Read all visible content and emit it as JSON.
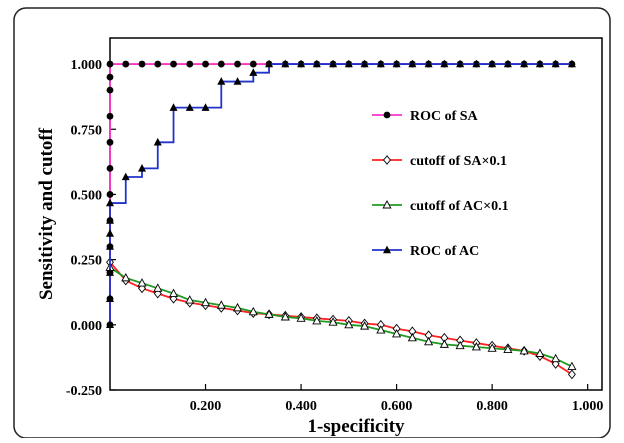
{
  "chart_data": {
    "type": "line",
    "xlabel": "1-specificity",
    "ylabel": "Sensitivity and cutoff",
    "xlim": [
      0.0,
      1.03
    ],
    "ylim": [
      -0.25,
      1.1
    ],
    "x_ticks": [
      "0.200",
      "0.400",
      "0.600",
      "0.800",
      "1.000"
    ],
    "x_tick_values": [
      0.2,
      0.4,
      0.6,
      0.8,
      1.0
    ],
    "y_ticks": [
      "1.000",
      "0.750",
      "0.500",
      "0.250",
      "0.000",
      "-0.250"
    ],
    "y_tick_values": [
      1.0,
      0.75,
      0.5,
      0.25,
      0.0,
      -0.25
    ],
    "legend_position": "right-middle",
    "series": [
      {
        "name": "ROC of SA",
        "color": "#ff33cc",
        "marker": "filled-circle",
        "marker_color": "#000000",
        "x": [
          0.0,
          0.0,
          0.0,
          0.0,
          0.0,
          0.0,
          0.0,
          0.0,
          0.0,
          0.0,
          0.0,
          0.0,
          0.033,
          0.067,
          0.1,
          0.133,
          0.167,
          0.2,
          0.233,
          0.267,
          0.3,
          0.333,
          0.367,
          0.4,
          0.433,
          0.467,
          0.5,
          0.533,
          0.567,
          0.6,
          0.633,
          0.667,
          0.7,
          0.733,
          0.767,
          0.8,
          0.833,
          0.867,
          0.9,
          0.933,
          0.967
        ],
        "y": [
          0.0,
          0.1,
          0.2,
          0.3,
          0.4,
          0.5,
          0.6,
          0.7,
          0.8,
          0.9,
          0.95,
          1.0,
          1.0,
          1.0,
          1.0,
          1.0,
          1.0,
          1.0,
          1.0,
          1.0,
          1.0,
          1.0,
          1.0,
          1.0,
          1.0,
          1.0,
          1.0,
          1.0,
          1.0,
          1.0,
          1.0,
          1.0,
          1.0,
          1.0,
          1.0,
          1.0,
          1.0,
          1.0,
          1.0,
          1.0,
          1.0
        ]
      },
      {
        "name": "cutoff of SA×0.1",
        "color": "#ff2222",
        "marker": "open-diamond",
        "marker_color": "#000000",
        "x": [
          0.0,
          0.033,
          0.067,
          0.1,
          0.133,
          0.167,
          0.2,
          0.233,
          0.267,
          0.3,
          0.333,
          0.367,
          0.4,
          0.433,
          0.467,
          0.5,
          0.533,
          0.567,
          0.6,
          0.633,
          0.667,
          0.7,
          0.733,
          0.767,
          0.8,
          0.833,
          0.867,
          0.9,
          0.933,
          0.967
        ],
        "y": [
          0.24,
          0.17,
          0.14,
          0.12,
          0.1,
          0.085,
          0.075,
          0.065,
          0.055,
          0.045,
          0.04,
          0.035,
          0.03,
          0.025,
          0.02,
          0.015,
          0.005,
          0.0,
          -0.015,
          -0.025,
          -0.04,
          -0.05,
          -0.06,
          -0.07,
          -0.08,
          -0.09,
          -0.1,
          -0.12,
          -0.15,
          -0.19
        ]
      },
      {
        "name": "cutoff of AC×0.1",
        "color": "#229922",
        "marker": "open-triangle",
        "marker_color": "#000000",
        "x": [
          0.0,
          0.033,
          0.067,
          0.1,
          0.133,
          0.167,
          0.2,
          0.233,
          0.267,
          0.3,
          0.333,
          0.367,
          0.4,
          0.433,
          0.467,
          0.5,
          0.533,
          0.567,
          0.6,
          0.633,
          0.667,
          0.7,
          0.733,
          0.767,
          0.8,
          0.833,
          0.867,
          0.9,
          0.933,
          0.967
        ],
        "y": [
          0.22,
          0.18,
          0.16,
          0.14,
          0.12,
          0.095,
          0.085,
          0.075,
          0.065,
          0.05,
          0.04,
          0.03,
          0.025,
          0.015,
          0.01,
          0.0,
          -0.005,
          -0.02,
          -0.035,
          -0.05,
          -0.065,
          -0.075,
          -0.08,
          -0.085,
          -0.09,
          -0.095,
          -0.1,
          -0.11,
          -0.13,
          -0.16
        ]
      },
      {
        "name": "ROC of AC",
        "color": "#2233cc",
        "marker": "filled-triangle",
        "marker_color": "#000000",
        "step": true,
        "x": [
          0.0,
          0.0,
          0.0,
          0.0,
          0.0,
          0.0,
          0.0,
          0.033,
          0.067,
          0.1,
          0.133,
          0.167,
          0.2,
          0.233,
          0.267,
          0.3,
          0.333,
          0.367,
          0.4,
          0.433,
          0.467,
          0.5,
          0.533,
          0.567,
          0.6,
          0.633,
          0.667,
          0.7,
          0.733,
          0.767,
          0.8,
          0.833,
          0.867,
          0.9,
          0.933,
          0.967
        ],
        "y": [
          0.0,
          0.1,
          0.2,
          0.3,
          0.35,
          0.4,
          0.467,
          0.567,
          0.6,
          0.7,
          0.833,
          0.833,
          0.833,
          0.933,
          0.933,
          0.967,
          1.0,
          1.0,
          1.0,
          1.0,
          1.0,
          1.0,
          1.0,
          1.0,
          1.0,
          1.0,
          1.0,
          1.0,
          1.0,
          1.0,
          1.0,
          1.0,
          1.0,
          1.0,
          1.0,
          1.0
        ]
      }
    ]
  }
}
